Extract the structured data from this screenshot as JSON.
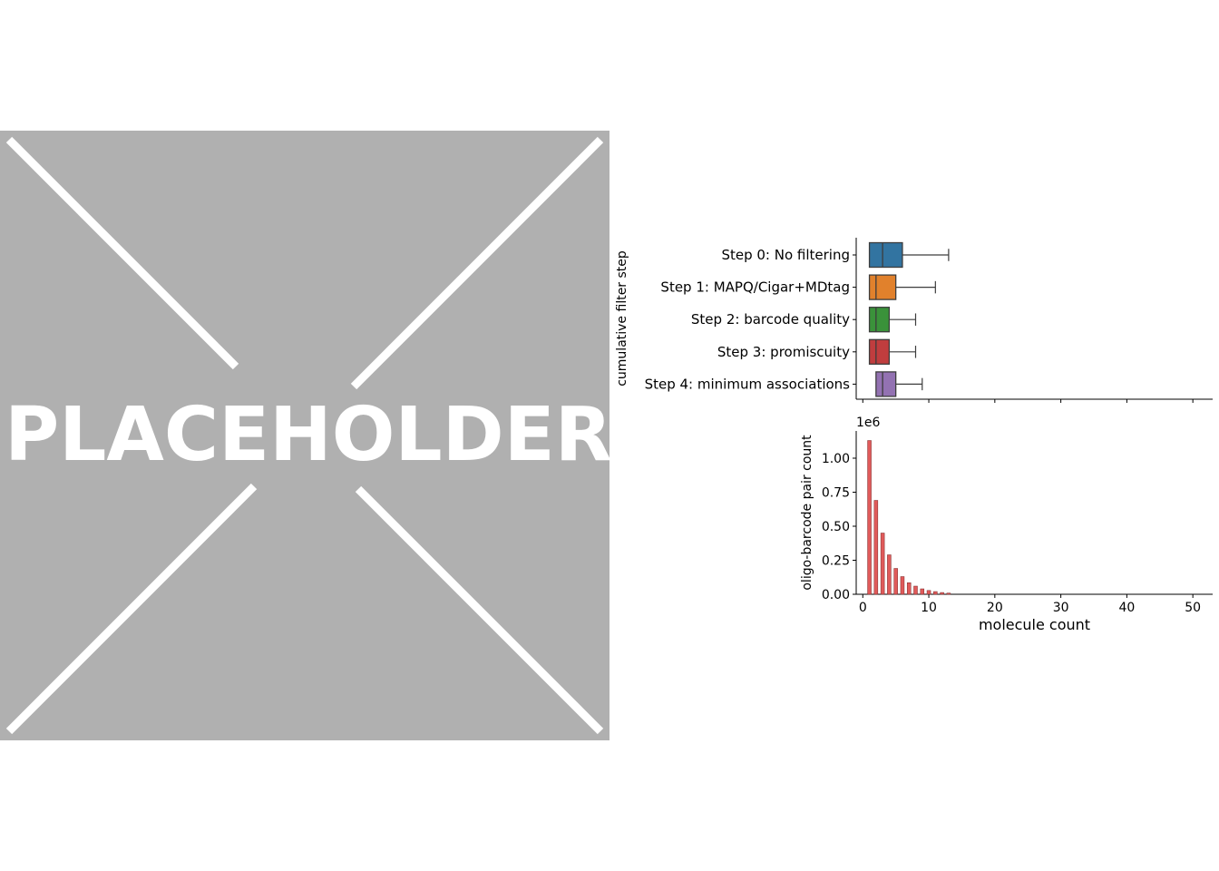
{
  "placeholder": {
    "label": "PLACEHOLDER",
    "background": "#b0b0b0",
    "stroke": "#ffffff"
  },
  "chart_data": [
    {
      "type": "box",
      "orientation": "horizontal",
      "title": "",
      "xlabel": "",
      "ylabel": "cumulative filter step",
      "xlim": [
        -1,
        53
      ],
      "categories": [
        "Step 0: No filtering",
        "Step 1: MAPQ/Cigar+MDtag",
        "Step 2: barcode quality",
        "Step 3: promiscuity",
        "Step 4: minimum associations"
      ],
      "boxes": [
        {
          "whisker_low": 1,
          "q1": 1,
          "median": 3,
          "q3": 6,
          "whisker_high": 13,
          "color": "#3274a1"
        },
        {
          "whisker_low": 1,
          "q1": 1,
          "median": 2,
          "q3": 5,
          "whisker_high": 11,
          "color": "#e1812c"
        },
        {
          "whisker_low": 1,
          "q1": 1,
          "median": 2,
          "q3": 4,
          "whisker_high": 8,
          "color": "#3a923a"
        },
        {
          "whisker_low": 1,
          "q1": 1,
          "median": 2,
          "q3": 4,
          "whisker_high": 8,
          "color": "#c03d3e"
        },
        {
          "whisker_low": 2,
          "q1": 2,
          "median": 3,
          "q3": 5,
          "whisker_high": 9,
          "color": "#9372b2"
        }
      ]
    },
    {
      "type": "bar",
      "title": "",
      "xlabel": "molecule count",
      "ylabel": "oligo-barcode pair count",
      "y_offset_label": "1e6",
      "xlim": [
        -1,
        53
      ],
      "ylim": [
        0,
        1.2
      ],
      "xticks": [
        0,
        10,
        20,
        30,
        40,
        50
      ],
      "yticks": [
        0.0,
        0.25,
        0.5,
        0.75,
        1.0
      ],
      "ytick_labels": [
        "0.00",
        "0.25",
        "0.50",
        "0.75",
        "1.00"
      ],
      "bar_color": "#e05a5a",
      "x": [
        1,
        2,
        3,
        4,
        5,
        6,
        7,
        8,
        9,
        10,
        11,
        12,
        13
      ],
      "values": [
        1.13,
        0.69,
        0.45,
        0.29,
        0.19,
        0.13,
        0.085,
        0.06,
        0.04,
        0.028,
        0.02,
        0.013,
        0.009
      ]
    }
  ]
}
